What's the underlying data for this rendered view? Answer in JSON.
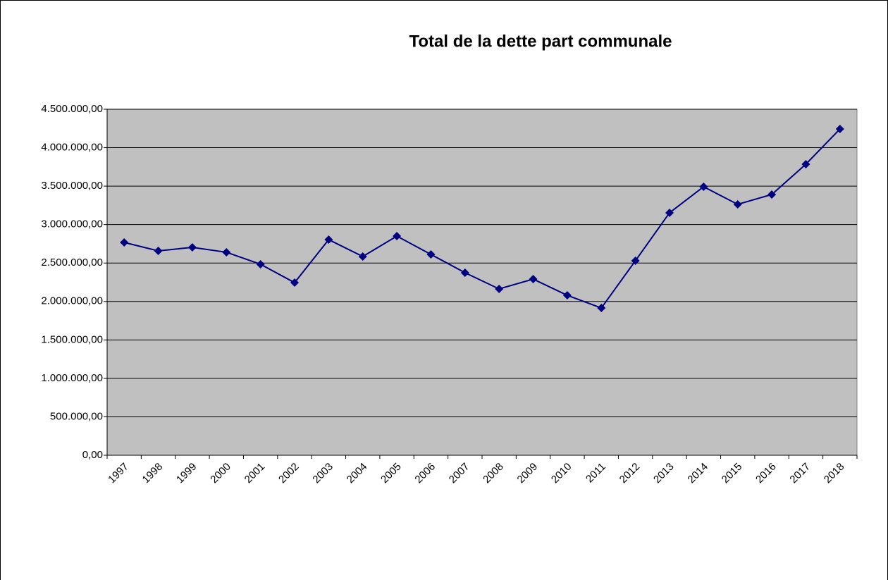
{
  "chart_data": {
    "type": "line",
    "title": "Total de la dette part communale",
    "categories": [
      "1997",
      "1998",
      "1999",
      "2000",
      "2001",
      "2002",
      "2003",
      "2004",
      "2005",
      "2006",
      "2007",
      "2008",
      "2009",
      "2010",
      "2011",
      "2012",
      "2013",
      "2014",
      "2015",
      "2016",
      "2017",
      "2018"
    ],
    "series": [
      {
        "name": "Total de la dette part communale",
        "color": "#000080",
        "values": [
          2768000,
          2658000,
          2704000,
          2640000,
          2484000,
          2245000,
          2804000,
          2585000,
          2850000,
          2612000,
          2374000,
          2163000,
          2291000,
          2080000,
          1915000,
          2530000,
          3153000,
          3492000,
          3263000,
          3391000,
          3785000,
          4243000
        ]
      }
    ],
    "ylim": [
      0,
      4500000
    ],
    "yticks": [
      {
        "value": 0,
        "label": "0,00"
      },
      {
        "value": 500000,
        "label": "500.000,00"
      },
      {
        "value": 1000000,
        "label": "1.000.000,00"
      },
      {
        "value": 1500000,
        "label": "1.500.000,00"
      },
      {
        "value": 2000000,
        "label": "2.000.000,00"
      },
      {
        "value": 2500000,
        "label": "2.500.000,00"
      },
      {
        "value": 3000000,
        "label": "3.000.000,00"
      },
      {
        "value": 3500000,
        "label": "3.500.000,00"
      },
      {
        "value": 4000000,
        "label": "4.000.000,00"
      },
      {
        "value": 4500000,
        "label": "4.500.000,00"
      }
    ],
    "grid": true
  }
}
